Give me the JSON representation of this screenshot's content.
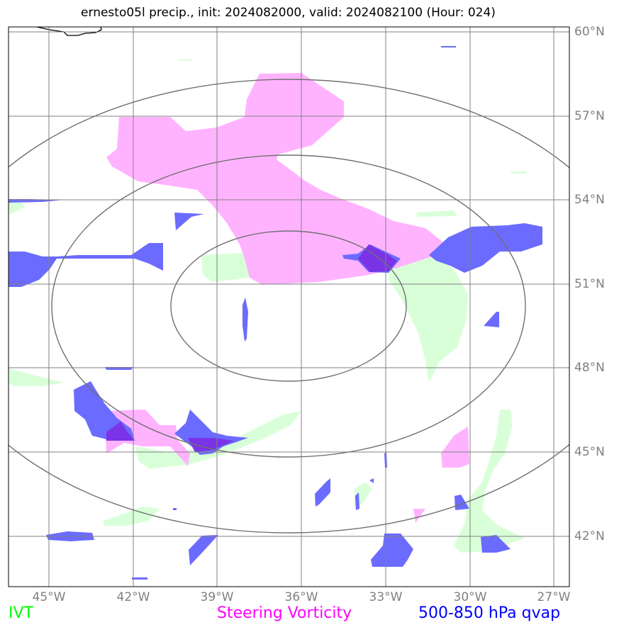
{
  "title": "ernesto05l precip., init: 2024082000, valid: 2024082100 (Hour: 024)",
  "lat_labels": [
    "60°N",
    "57°N",
    "54°N",
    "51°N",
    "48°N",
    "45°N",
    "42°N"
  ],
  "lon_labels": [
    "45°W",
    "42°W",
    "39°W",
    "36°W",
    "33°W",
    "30°W",
    "27°W"
  ],
  "legend": {
    "ivt": {
      "label": "IVT",
      "color": "#00ff00"
    },
    "vorticity": {
      "label": "Steering Vorticity",
      "color": "#ff00ff"
    },
    "qvap": {
      "label": "500-850 hPa qvap",
      "color": "#0000ff"
    }
  },
  "colors": {
    "ivt_fill": "#d9ffd9",
    "vorticity_fill": "#ffb3ff",
    "qvap_fill": "#6b6bff",
    "overlap_fill": "#7a33e6",
    "gridline": "#808080",
    "range_ring": "#707070",
    "coastline": "#000000"
  }
}
